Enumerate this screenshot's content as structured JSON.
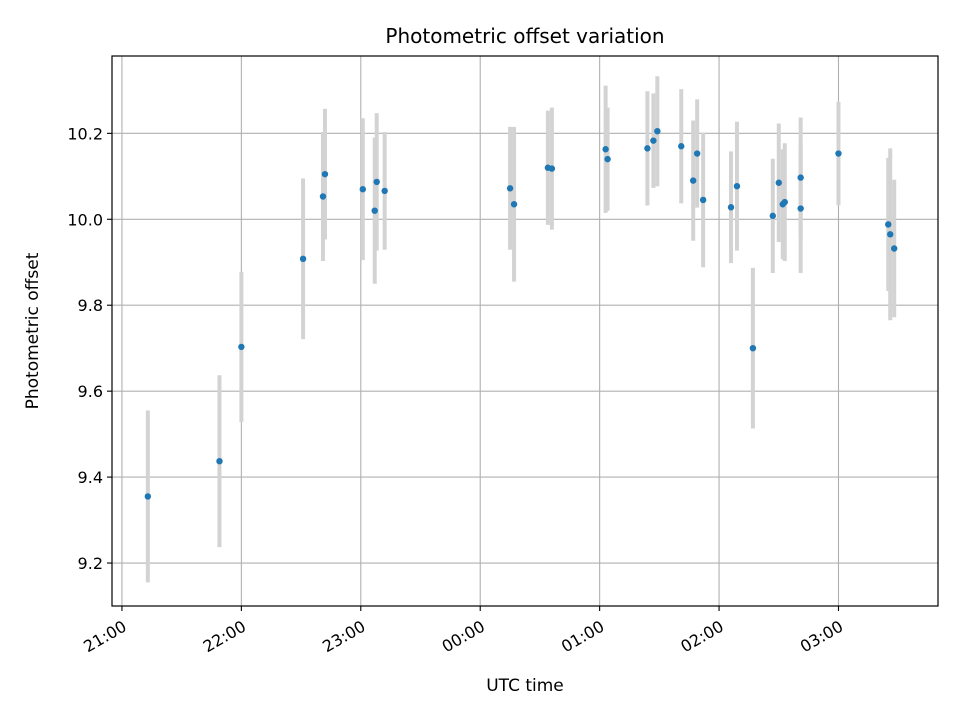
{
  "chart_data": {
    "type": "scatter",
    "title": "Photometric offset variation",
    "xlabel": "UTC time",
    "ylabel": "Photometric offset",
    "x_tick_labels": [
      "21:00",
      "22:00",
      "23:00",
      "00:00",
      "01:00",
      "02:00",
      "03:00"
    ],
    "y_tick_labels": [
      "9.2",
      "9.4",
      "9.6",
      "9.8",
      "10.0",
      "10.2"
    ],
    "y_ticks": [
      9.2,
      9.4,
      9.6,
      9.8,
      10.0,
      10.2
    ],
    "xlim": [
      "20:55",
      "27:50"
    ],
    "ylim": [
      9.1,
      10.38
    ],
    "grid": true,
    "point_color": "#1f77b4",
    "errorbar_color": "#d3d3d3",
    "points": [
      {
        "x": "21:13",
        "y": 9.355,
        "yerr": 0.2
      },
      {
        "x": "21:49",
        "y": 9.437,
        "yerr": 0.2
      },
      {
        "x": "22:00",
        "y": 9.703,
        "yerr": 0.175
      },
      {
        "x": "22:31",
        "y": 9.908,
        "yerr": 0.187
      },
      {
        "x": "22:41",
        "y": 10.053,
        "yerr": 0.15
      },
      {
        "x": "22:42",
        "y": 10.105,
        "yerr": 0.152
      },
      {
        "x": "23:01",
        "y": 10.07,
        "yerr": 0.165
      },
      {
        "x": "23:07",
        "y": 10.02,
        "yerr": 0.17
      },
      {
        "x": "23:08",
        "y": 10.087,
        "yerr": 0.16
      },
      {
        "x": "23:12",
        "y": 10.066,
        "yerr": 0.137
      },
      {
        "x": "00:15",
        "y": 10.072,
        "yerr": 0.143
      },
      {
        "x": "00:17",
        "y": 10.035,
        "yerr": 0.18
      },
      {
        "x": "00:34",
        "y": 10.12,
        "yerr": 0.133
      },
      {
        "x": "00:36",
        "y": 10.118,
        "yerr": 0.142
      },
      {
        "x": "01:03",
        "y": 10.163,
        "yerr": 0.148
      },
      {
        "x": "01:04",
        "y": 10.14,
        "yerr": 0.12
      },
      {
        "x": "01:24",
        "y": 10.165,
        "yerr": 0.133
      },
      {
        "x": "01:27",
        "y": 10.183,
        "yerr": 0.11
      },
      {
        "x": "01:29",
        "y": 10.205,
        "yerr": 0.128
      },
      {
        "x": "01:41",
        "y": 10.17,
        "yerr": 0.133
      },
      {
        "x": "01:47",
        "y": 10.09,
        "yerr": 0.14
      },
      {
        "x": "01:49",
        "y": 10.153,
        "yerr": 0.126
      },
      {
        "x": "01:52",
        "y": 10.045,
        "yerr": 0.157
      },
      {
        "x": "02:06",
        "y": 10.028,
        "yerr": 0.13
      },
      {
        "x": "02:09",
        "y": 10.077,
        "yerr": 0.15
      },
      {
        "x": "02:17",
        "y": 9.7,
        "yerr": 0.187
      },
      {
        "x": "02:27",
        "y": 10.008,
        "yerr": 0.133
      },
      {
        "x": "02:30",
        "y": 10.085,
        "yerr": 0.138
      },
      {
        "x": "02:32",
        "y": 10.035,
        "yerr": 0.128
      },
      {
        "x": "02:33",
        "y": 10.04,
        "yerr": 0.137
      },
      {
        "x": "02:41",
        "y": 10.097,
        "yerr": 0.14
      },
      {
        "x": "02:41",
        "y": 10.025,
        "yerr": 0.15
      },
      {
        "x": "03:00",
        "y": 10.153,
        "yerr": 0.12
      },
      {
        "x": "03:25",
        "y": 9.988,
        "yerr": 0.155
      },
      {
        "x": "03:26",
        "y": 9.965,
        "yerr": 0.2
      },
      {
        "x": "03:28",
        "y": 9.932,
        "yerr": 0.16
      }
    ]
  }
}
